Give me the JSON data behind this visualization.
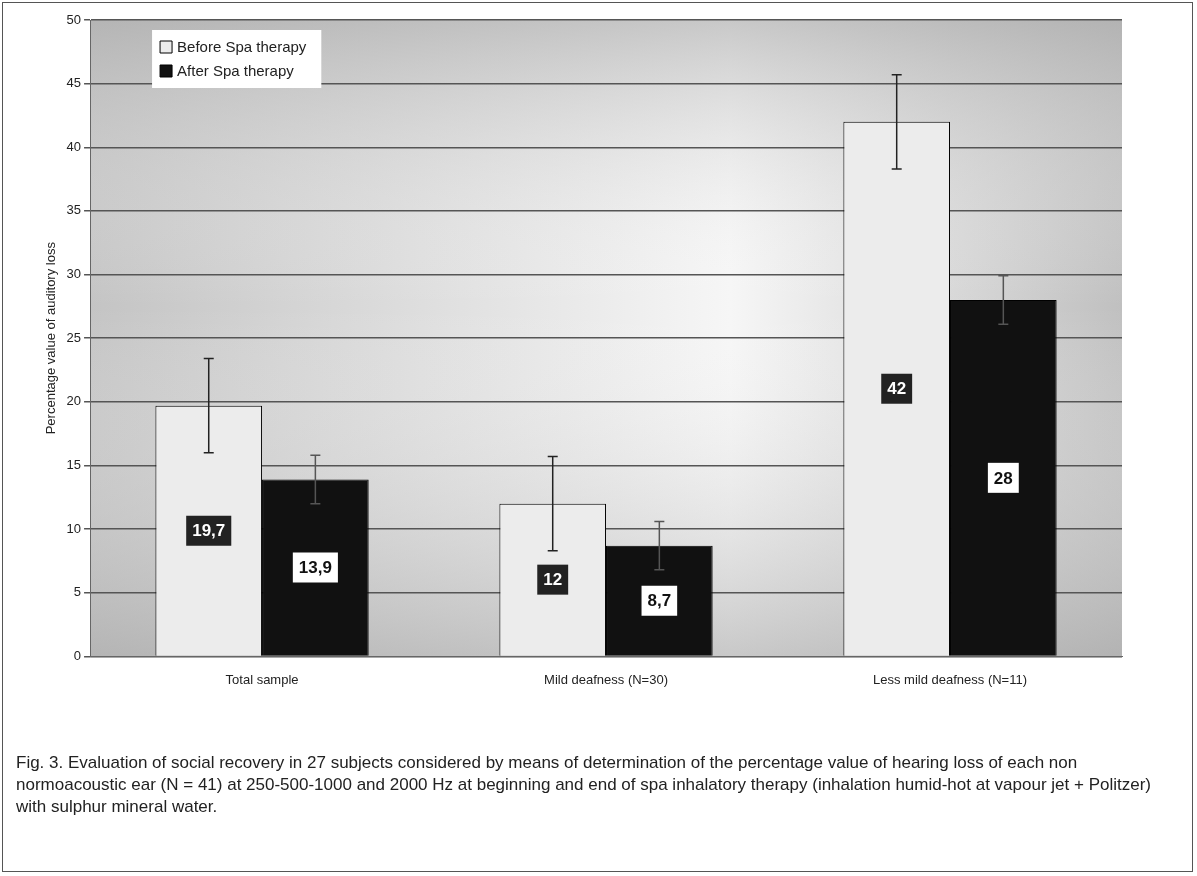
{
  "chart_data": {
    "type": "bar",
    "ylabel": "Percentage value of auditory loss",
    "categories": [
      "Total sample",
      "Mild deafness (N=30)",
      "Less mild deafness (N=11)"
    ],
    "series": [
      {
        "name": "Before Spa therapy",
        "color": "#ececec",
        "values": [
          19.7,
          12,
          42
        ],
        "value_labels": [
          "19,7",
          "12",
          "42"
        ],
        "errors": [
          3.7,
          3.7,
          3.7
        ]
      },
      {
        "name": "After Spa therapy",
        "color": "#111111",
        "values": [
          13.9,
          8.7,
          28
        ],
        "value_labels": [
          "13,9",
          "8,7",
          "28"
        ],
        "errors": [
          1.9,
          1.9,
          1.9
        ]
      }
    ],
    "ylim": [
      0,
      50
    ],
    "yticks": [
      0,
      5,
      10,
      15,
      20,
      25,
      30,
      35,
      40,
      45,
      50
    ],
    "grid": "y",
    "legend": "top left",
    "annotations": [
      "Fig. 3. Evaluation of social recovery in 27 subjects considered by means of determination of the percentage value of hearing loss of each non normoacoustic ear (N = 41) at 250-500-1000 and 2000 Hz at beginning and end of spa inhalatory therapy (inhalation humid-hot at vapour jet + Politzer) with sulphur mineral water."
    ]
  }
}
